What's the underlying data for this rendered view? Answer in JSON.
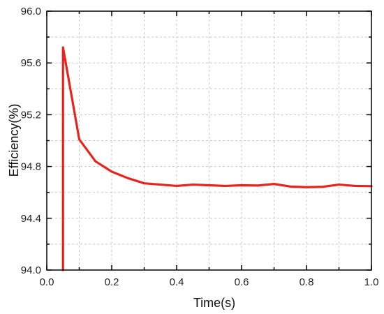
{
  "chart_data": {
    "type": "line",
    "title": "",
    "xlabel": "Time(s)",
    "ylabel": "Efficiency(%)",
    "xlim": [
      0.0,
      1.0
    ],
    "ylim": [
      94.0,
      96.0
    ],
    "xticks": [
      0.0,
      0.2,
      0.4,
      0.6,
      0.8,
      1.0
    ],
    "xtick_labels": [
      "0.0",
      "0.2",
      "0.4",
      "0.6",
      "0.8",
      "1.0"
    ],
    "yticks": [
      94.0,
      94.4,
      94.8,
      95.2,
      95.6,
      96.0
    ],
    "ytick_labels": [
      "94.0",
      "94.4",
      "94.8",
      "95.2",
      "95.6",
      "96.0"
    ],
    "grid": true,
    "legend": "none",
    "series": [
      {
        "color": "#e8231c",
        "x": [
          0.05,
          0.05,
          0.1,
          0.15,
          0.2,
          0.25,
          0.3,
          0.35,
          0.4,
          0.45,
          0.5,
          0.55,
          0.6,
          0.65,
          0.7,
          0.75,
          0.8,
          0.85,
          0.9,
          0.95,
          1.0
        ],
        "y": [
          94.0,
          95.72,
          95.01,
          94.84,
          94.76,
          94.71,
          94.67,
          94.66,
          94.65,
          94.66,
          94.655,
          94.65,
          94.655,
          94.653,
          94.665,
          94.645,
          94.64,
          94.643,
          94.66,
          94.65,
          94.648
        ]
      }
    ]
  }
}
